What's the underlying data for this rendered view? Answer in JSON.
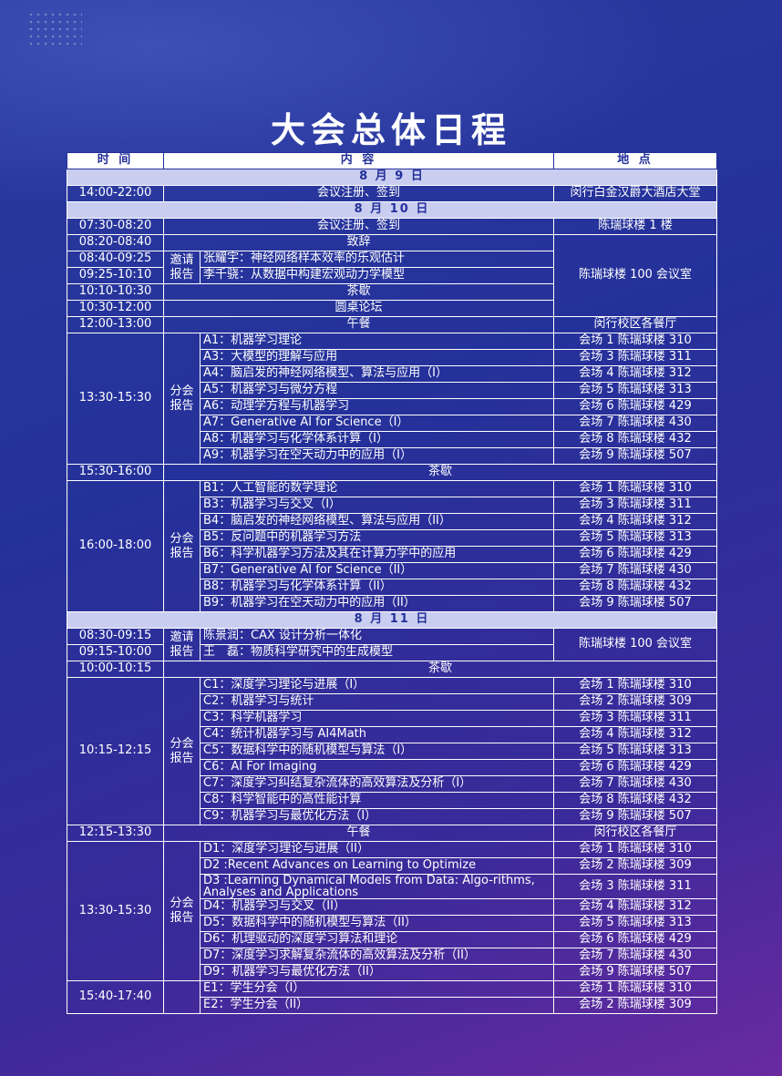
{
  "title": "大会总体日程",
  "headers": {
    "time": "时 间",
    "content": "内 容",
    "place": "地 点"
  },
  "day1": {
    "label": "8 月 9 日",
    "rows": [
      {
        "time": "14:00-22:00",
        "content": "会议注册、签到",
        "place": "闵行白金汉爵大酒店大堂"
      }
    ]
  },
  "day2": {
    "label": "8 月 10 日",
    "reg": {
      "time": "07:30-08:20",
      "content": "会议注册、签到",
      "place": "陈瑞球楼 1 楼"
    },
    "speech": {
      "time": "08:20-08:40",
      "content": "致辞"
    },
    "invited_label": "邀请报告",
    "invited": [
      {
        "time": "08:40-09:25",
        "content": "张耀宇：神经网络样本效率的乐观估计"
      },
      {
        "time": "09:25-10:10",
        "content": "李千骁：从数据中构建宏观动力学模型"
      }
    ],
    "break1": {
      "time": "10:10-10:30",
      "content": "茶歇"
    },
    "round": {
      "time": "10:30-12:00",
      "content": "圆桌论坛"
    },
    "morning_place": "陈瑞球楼 100 会议室",
    "lunch": {
      "time": "12:00-13:00",
      "content": "午餐",
      "place": "闵行校区各餐厅"
    },
    "sessA": {
      "time": "13:30-15:30",
      "label": "分会报告",
      "items": [
        {
          "content": "A1：机器学习理论",
          "place": "会场 1 陈瑞球楼 310"
        },
        {
          "content": "A3：大模型的理解与应用",
          "place": "会场 3 陈瑞球楼 311"
        },
        {
          "content": "A4：脑启发的神经网络模型、算法与应用（I）",
          "place": "会场 4 陈瑞球楼 312"
        },
        {
          "content": "A5：机器学习与微分方程",
          "place": "会场 5 陈瑞球楼 313"
        },
        {
          "content": "A6：动理学方程与机器学习",
          "place": "会场 6 陈瑞球楼 429"
        },
        {
          "content": "A7：Generative AI for Science（I）",
          "place": "会场 7 陈瑞球楼 430"
        },
        {
          "content": "A8：机器学习与化学体系计算（I）",
          "place": "会场 8 陈瑞球楼 432"
        },
        {
          "content": "A9：机器学习在空天动力中的应用（I）",
          "place": "会场 9 陈瑞球楼 507"
        }
      ]
    },
    "break2": {
      "time": "15:30-16:00",
      "content": "茶歇"
    },
    "sessB": {
      "time": "16:00-18:00",
      "label": "分会报告",
      "items": [
        {
          "content": "B1：人工智能的数学理论",
          "place": "会场 1 陈瑞球楼 310"
        },
        {
          "content": "B3：机器学习与交叉（I）",
          "place": "会场 3 陈瑞球楼 311"
        },
        {
          "content": "B4：脑启发的神经网络模型、算法与应用（II）",
          "place": "会场 4 陈瑞球楼 312"
        },
        {
          "content": "B5：反问题中的机器学习方法",
          "place": "会场 5 陈瑞球楼 313"
        },
        {
          "content": "B6：科学机器学习方法及其在计算力学中的应用",
          "place": "会场 6 陈瑞球楼 429"
        },
        {
          "content": "B7：Generative AI for Science（II）",
          "place": "会场 7 陈瑞球楼 430"
        },
        {
          "content": "B8：机器学习与化学体系计算（II）",
          "place": "会场 8 陈瑞球楼 432"
        },
        {
          "content": "B9：机器学习在空天动力中的应用（II）",
          "place": "会场 9 陈瑞球楼 507"
        }
      ]
    }
  },
  "day3": {
    "label": "8 月 11 日",
    "invited_label": "邀请报告",
    "invited": [
      {
        "time": "08:30-09:15",
        "content": "陈景润：CAX 设计分析一体化"
      },
      {
        "time": "09:15-10:00",
        "content": "王　磊：物质科学研究中的生成模型"
      }
    ],
    "invited_place": "陈瑞球楼 100 会议室",
    "break1": {
      "time": "10:00-10:15",
      "content": "茶歇"
    },
    "sessC": {
      "time": "10:15-12:15",
      "label": "分会报告",
      "items": [
        {
          "content": "C1：深度学习理论与进展（I）",
          "place": "会场 1 陈瑞球楼 310"
        },
        {
          "content": "C2：机器学习与统计",
          "place": "会场 2 陈瑞球楼 309"
        },
        {
          "content": "C3：科学机器学习",
          "place": "会场 3 陈瑞球楼 311"
        },
        {
          "content": "C4：统计机器学习与 AI4Math",
          "place": "会场 4 陈瑞球楼 312"
        },
        {
          "content": "C5：数据科学中的随机模型与算法（I）",
          "place": "会场 5 陈瑞球楼 313"
        },
        {
          "content": "C6：AI For Imaging",
          "place": "会场 6 陈瑞球楼 429"
        },
        {
          "content": "C7：深度学习纠结复杂流体的高效算法及分析（I）",
          "place": "会场 7 陈瑞球楼 430"
        },
        {
          "content": "C8：科学智能中的高性能计算",
          "place": "会场 8 陈瑞球楼 432"
        },
        {
          "content": "C9：机器学习与最优化方法（I）",
          "place": "会场 9 陈瑞球楼 507"
        }
      ]
    },
    "lunch": {
      "time": "12:15-13:30",
      "content": "午餐",
      "place": "闵行校区各餐厅"
    },
    "sessD": {
      "time": "13:30-15:30",
      "label": "分会报告",
      "items": [
        {
          "content": "D1：深度学习理论与进展（II）",
          "place": "会场 1 陈瑞球楼 310"
        },
        {
          "content": "D2 :Recent Advances on Learning to Optimize",
          "place": "会场 2 陈瑞球楼 309"
        },
        {
          "content": "D3 :Learning Dynamical Models from Data: Algo-rithms, Analyses and Applications",
          "place": "会场 3 陈瑞球楼 311"
        },
        {
          "content": "D4：机器学习与交叉（II）",
          "place": "会场 4 陈瑞球楼 312"
        },
        {
          "content": "D5：数据科学中的随机模型与算法（II）",
          "place": "会场 5 陈瑞球楼 313"
        },
        {
          "content": "D6：机理驱动的深度学习算法和理论",
          "place": "会场 6 陈瑞球楼 429"
        },
        {
          "content": "D7：深度学习求解复杂流体的高效算法及分析（II）",
          "place": "会场 7 陈瑞球楼 430"
        },
        {
          "content": "D9：机器学习与最优化方法（II）",
          "place": "会场 9 陈瑞球楼 507"
        }
      ]
    },
    "sessE": {
      "time": "15:40-17:40",
      "items": [
        {
          "content": "E1：学生分会（I）",
          "place": "会场 1 陈瑞球楼 310"
        },
        {
          "content": "E2：学生分会（II）",
          "place": "会场 2 陈瑞球楼 309"
        }
      ]
    }
  }
}
